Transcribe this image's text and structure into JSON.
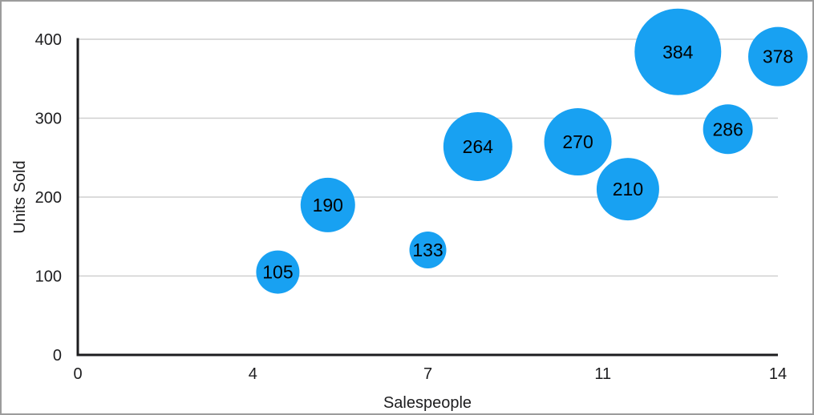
{
  "window": {
    "background": "#ffffff",
    "border_color": "#9c9c9c"
  },
  "chart_data": {
    "type": "bubble",
    "title": "",
    "xlabel": "Salespeople",
    "ylabel": "Units Sold",
    "x_axis": {
      "min": 0,
      "max": 14,
      "tick_labels": [
        "0",
        "4",
        "7",
        "11",
        "14"
      ]
    },
    "y_axis": {
      "min": 0,
      "max": 400,
      "ticks": [
        0,
        100,
        200,
        300,
        400
      ]
    },
    "grid": "horizontal-only",
    "legend": "none",
    "points": [
      {
        "salespeople": 4,
        "units_sold": 105,
        "label": "105",
        "bubble_radius_px": 27
      },
      {
        "salespeople": 5,
        "units_sold": 190,
        "label": "190",
        "bubble_radius_px": 34
      },
      {
        "salespeople": 7,
        "units_sold": 133,
        "label": "133",
        "bubble_radius_px": 23
      },
      {
        "salespeople": 8,
        "units_sold": 264,
        "label": "264",
        "bubble_radius_px": 43
      },
      {
        "salespeople": 10,
        "units_sold": 270,
        "label": "270",
        "bubble_radius_px": 42
      },
      {
        "salespeople": 11,
        "units_sold": 210,
        "label": "210",
        "bubble_radius_px": 39
      },
      {
        "salespeople": 12,
        "units_sold": 384,
        "label": "384",
        "bubble_radius_px": 54
      },
      {
        "salespeople": 13,
        "units_sold": 286,
        "label": "286",
        "bubble_radius_px": 31
      },
      {
        "salespeople": 14,
        "units_sold": 378,
        "label": "378",
        "bubble_radius_px": 37
      }
    ],
    "colors": {
      "bubble_fill": "#18a1f2",
      "bubble_label_text": "#000000",
      "axis_line": "#1d1d1f",
      "gridline": "#cfcfcf",
      "tick_text": "#1d1d1f"
    }
  }
}
